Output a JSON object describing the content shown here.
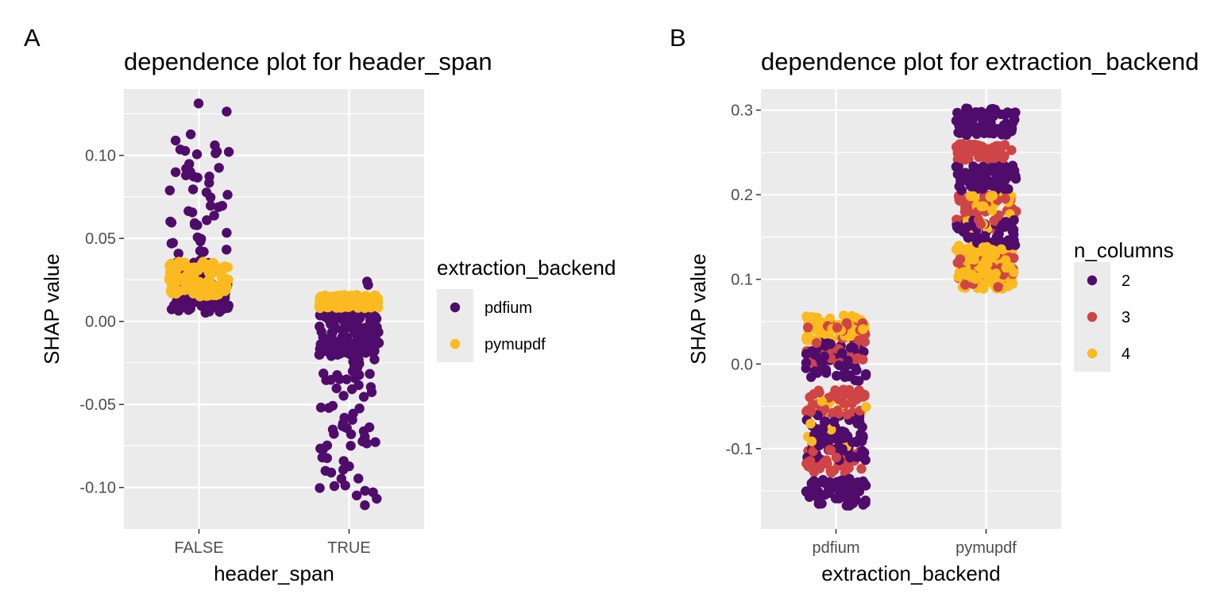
{
  "panels": [
    {
      "tag": "A",
      "title": "dependence plot for header_span",
      "xlabel": "header_span",
      "ylabel": "SHAP value",
      "legend_title": "extraction_backend"
    },
    {
      "tag": "B",
      "title": "dependence plot for extraction_backend",
      "xlabel": "extraction_backend",
      "ylabel": "SHAP value",
      "legend_title": "n_columns"
    }
  ],
  "colors": {
    "panel_bg": "#EBEBEB",
    "grid": "#FFFFFF",
    "purple": "#4F0C6B",
    "red": "#CF4446",
    "yellow": "#FBBA1F"
  },
  "chart_data": [
    {
      "type": "scatter",
      "title": "dependence plot for header_span",
      "xlabel": "header_span",
      "ylabel": "SHAP value",
      "categories": [
        "FALSE",
        "TRUE"
      ],
      "y_ticks": [
        "-0.10",
        "-0.05",
        "0.00",
        "0.05",
        "0.10"
      ],
      "y_tick_values": [
        -0.1,
        -0.05,
        0.0,
        0.05,
        0.1
      ],
      "ylim": [
        -0.125,
        0.14
      ],
      "grid": true,
      "legend": {
        "title": "extraction_backend",
        "placement": "right"
      },
      "series": [
        {
          "name": "pdfium",
          "color": "#4F0C6B",
          "groups": [
            {
              "category": "FALSE",
              "n": 160,
              "dense_range": [
                0.005,
                0.035
              ],
              "dense_share": 0.7,
              "tail_range": [
                0.035,
                0.132
              ]
            },
            {
              "category": "TRUE",
              "n": 200,
              "dense_range": [
                -0.02,
                0.008
              ],
              "dense_share": 0.62,
              "tail_range": [
                -0.111,
                -0.02
              ],
              "top_points": [
                0.024,
                0.022
              ]
            }
          ]
        },
        {
          "name": "pymupdf",
          "color": "#FBBA1F",
          "groups": [
            {
              "category": "FALSE",
              "n": 110,
              "dense_range": [
                0.015,
                0.036
              ],
              "dense_share": 1,
              "tail_range": [
                0.015,
                0.036
              ]
            },
            {
              "category": "TRUE",
              "n": 130,
              "dense_range": [
                0.008,
                0.016
              ],
              "dense_share": 1,
              "tail_range": [
                0.008,
                0.016
              ]
            }
          ]
        }
      ]
    },
    {
      "type": "scatter",
      "title": "dependence plot for extraction_backend",
      "xlabel": "extraction_backend",
      "ylabel": "SHAP value",
      "categories": [
        "pdfium",
        "pymupdf"
      ],
      "y_ticks": [
        "-0.1",
        "0.0",
        "0.1",
        "0.2",
        "0.3"
      ],
      "y_tick_values": [
        -0.1,
        0.0,
        0.1,
        0.2,
        0.3
      ],
      "ylim": [
        -0.195,
        0.325
      ],
      "grid": true,
      "legend": {
        "title": "n_columns",
        "placement": "right"
      },
      "series": [
        {
          "name": "2",
          "color": "#4F0C6B",
          "bands": [
            {
              "category": "pdfium",
              "n": 70,
              "range": [
                -0.168,
                -0.135
              ]
            },
            {
              "category": "pdfium",
              "n": 80,
              "range": [
                -0.115,
                -0.06
              ]
            },
            {
              "category": "pdfium",
              "n": 60,
              "range": [
                -0.02,
                0.03
              ]
            },
            {
              "category": "pymupdf",
              "n": 70,
              "range": [
                0.27,
                0.302
              ]
            },
            {
              "category": "pymupdf",
              "n": 70,
              "range": [
                0.205,
                0.235
              ]
            },
            {
              "category": "pymupdf",
              "n": 60,
              "range": [
                0.14,
                0.17
              ]
            }
          ]
        },
        {
          "name": "3",
          "color": "#CF4446",
          "bands": [
            {
              "category": "pdfium",
              "n": 40,
              "range": [
                -0.13,
                -0.1
              ]
            },
            {
              "category": "pdfium",
              "n": 50,
              "range": [
                -0.06,
                -0.03
              ]
            },
            {
              "category": "pdfium",
              "n": 50,
              "range": [
                0.0,
                0.05
              ]
            },
            {
              "category": "pymupdf",
              "n": 50,
              "range": [
                0.24,
                0.26
              ]
            },
            {
              "category": "pymupdf",
              "n": 50,
              "range": [
                0.16,
                0.2
              ]
            },
            {
              "category": "pymupdf",
              "n": 40,
              "range": [
                0.09,
                0.13
              ]
            }
          ]
        },
        {
          "name": "4",
          "color": "#FBBA1F",
          "bands": [
            {
              "category": "pdfium",
              "n": 70,
              "range": [
                0.025,
                0.058
              ]
            },
            {
              "category": "pdfium",
              "n": 20,
              "range": [
                -0.1,
                -0.04
              ]
            },
            {
              "category": "pymupdf",
              "n": 120,
              "range": [
                0.088,
                0.14
              ]
            },
            {
              "category": "pymupdf",
              "n": 25,
              "range": [
                0.16,
                0.2
              ]
            }
          ]
        }
      ]
    }
  ]
}
